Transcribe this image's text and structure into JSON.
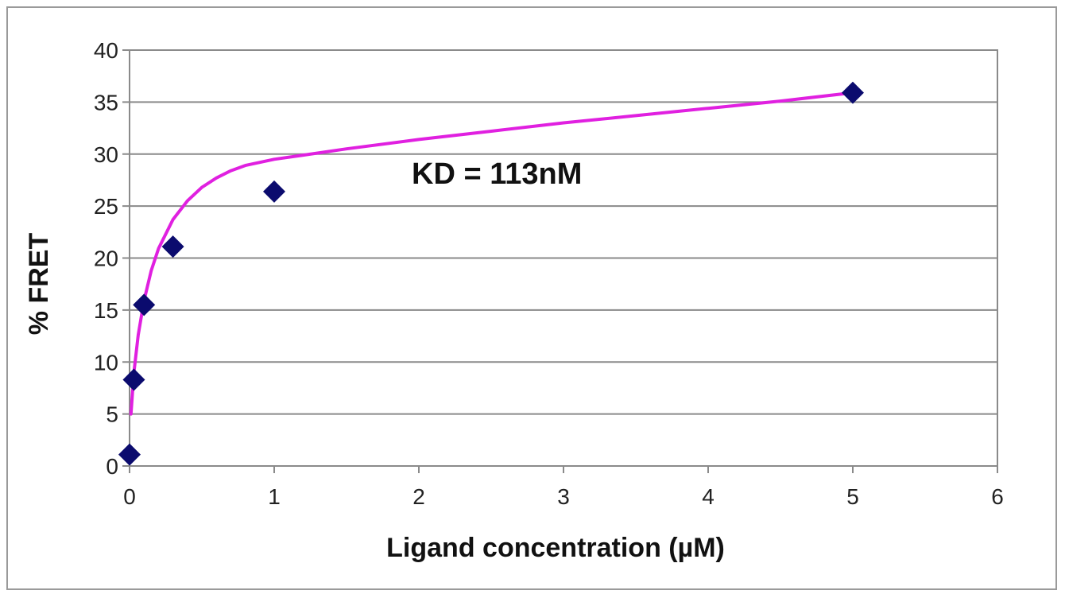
{
  "chart_data": {
    "type": "scatter",
    "xlabel": "Ligand concentration (µM)",
    "ylabel": "% FRET",
    "xlim": [
      0,
      6
    ],
    "ylim": [
      0,
      40
    ],
    "x_ticks": [
      0,
      1,
      2,
      3,
      4,
      5,
      6
    ],
    "y_ticks": [
      0,
      5,
      10,
      15,
      20,
      25,
      30,
      35,
      40
    ],
    "grid": "horizontal",
    "legend": "none",
    "annotation": "KD = 113nM",
    "series": [
      {
        "marker": "diamond",
        "color": "#0b0b6e",
        "points": [
          {
            "x": 0.0,
            "y": 1.1
          },
          {
            "x": 0.03,
            "y": 8.3
          },
          {
            "x": 0.1,
            "y": 15.5
          },
          {
            "x": 0.3,
            "y": 21.1
          },
          {
            "x": 1.0,
            "y": 26.4
          },
          {
            "x": 5.0,
            "y": 35.9
          }
        ]
      }
    ],
    "fit_curve": {
      "color": "#e020e0",
      "points": [
        {
          "x": 0.01,
          "y": 5.0
        },
        {
          "x": 0.03,
          "y": 9.0
        },
        {
          "x": 0.06,
          "y": 12.6
        },
        {
          "x": 0.1,
          "y": 15.9
        },
        {
          "x": 0.15,
          "y": 18.8
        },
        {
          "x": 0.2,
          "y": 20.9
        },
        {
          "x": 0.3,
          "y": 23.7
        },
        {
          "x": 0.4,
          "y": 25.5
        },
        {
          "x": 0.5,
          "y": 26.8
        },
        {
          "x": 0.6,
          "y": 27.7
        },
        {
          "x": 0.7,
          "y": 28.4
        },
        {
          "x": 0.8,
          "y": 28.9
        },
        {
          "x": 1.0,
          "y": 29.5
        },
        {
          "x": 1.2,
          "y": 29.9
        },
        {
          "x": 1.5,
          "y": 30.5
        },
        {
          "x": 2.0,
          "y": 31.4
        },
        {
          "x": 2.5,
          "y": 32.2
        },
        {
          "x": 3.0,
          "y": 33.0
        },
        {
          "x": 3.5,
          "y": 33.7
        },
        {
          "x": 4.0,
          "y": 34.4
        },
        {
          "x": 4.5,
          "y": 35.1
        },
        {
          "x": 5.0,
          "y": 35.9
        }
      ]
    }
  }
}
